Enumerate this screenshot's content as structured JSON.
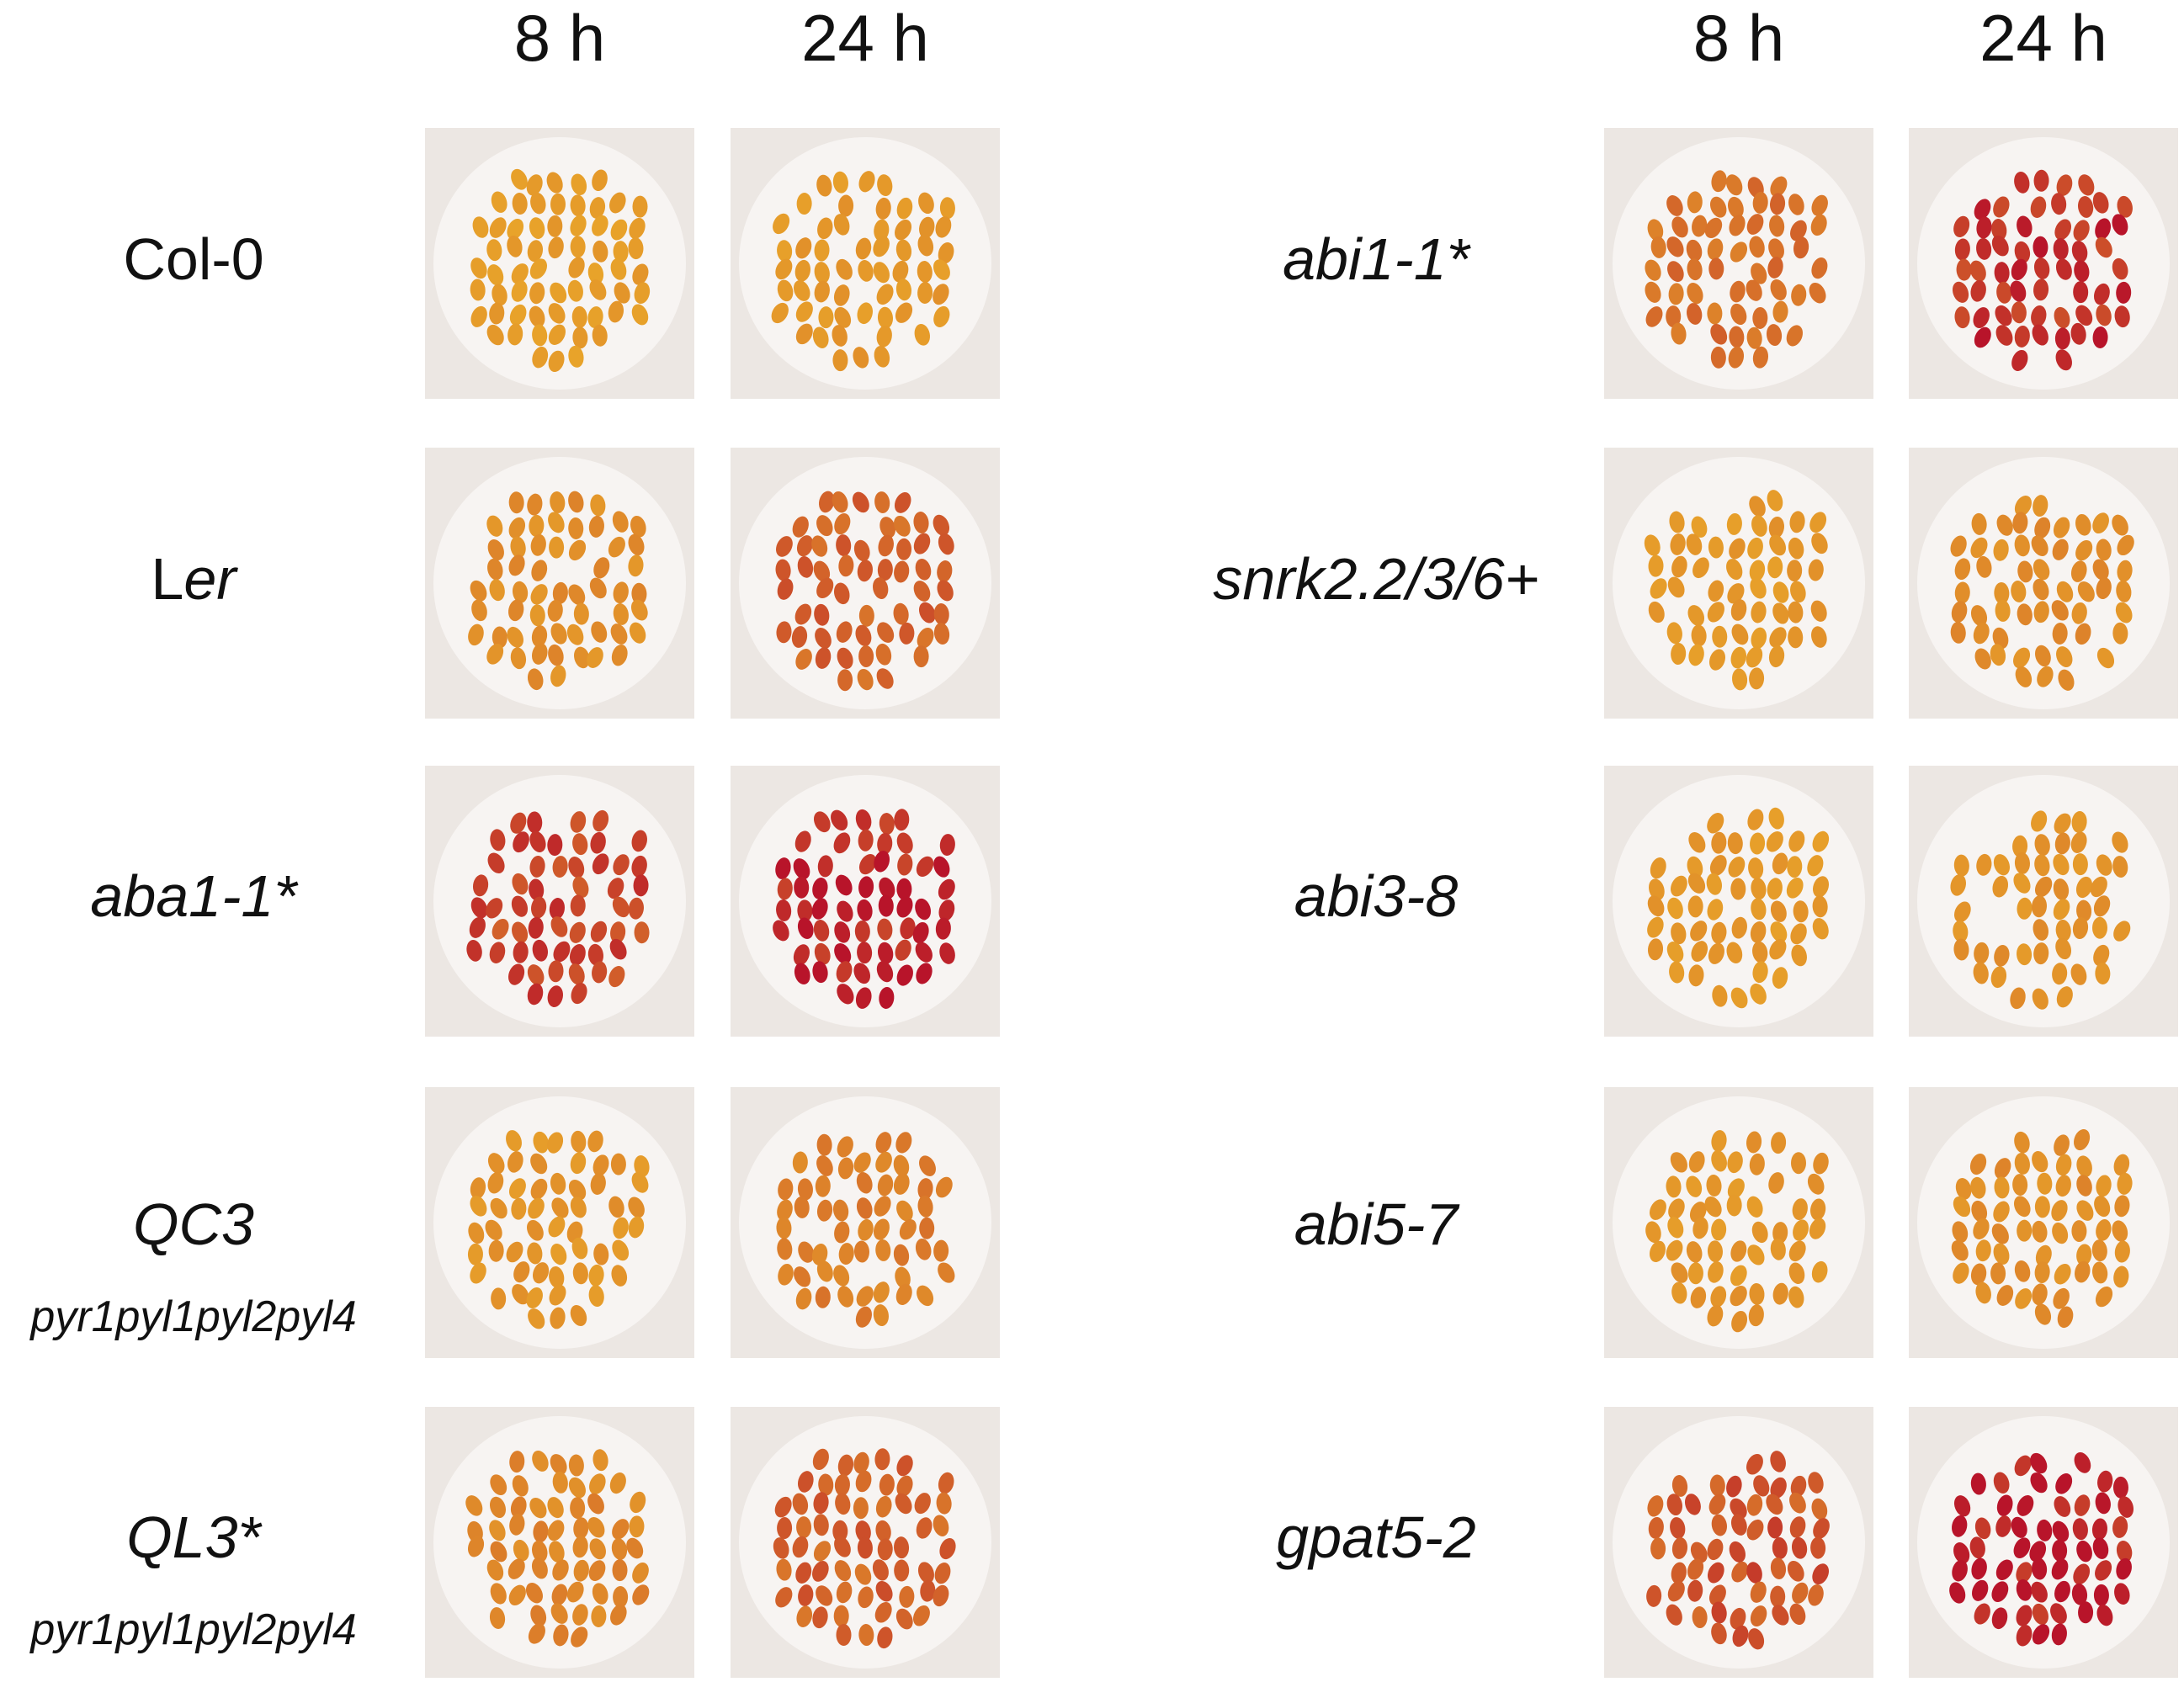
{
  "headers": {
    "left_8h": "8 h",
    "left_24h": "24 h",
    "right_8h": "8 h",
    "right_24h": "24 h"
  },
  "rows": {
    "left": [
      {
        "name": "Col-0",
        "name_plain": "",
        "subtitle": "",
        "stain_8h": 0.05,
        "stain_24h": 0.08
      },
      {
        "name": "er",
        "name_plain": "L",
        "subtitle": "",
        "stain_8h": 0.15,
        "stain_24h": 0.45
      },
      {
        "name": "aba1-1*",
        "name_plain": "",
        "subtitle": "",
        "stain_8h": 0.65,
        "stain_24h": 0.9
      },
      {
        "name": "QC3",
        "name_plain": "",
        "subtitle": "pyr1pyl1pyl2pyl4",
        "stain_8h": 0.1,
        "stain_24h": 0.25
      },
      {
        "name": "QL3*",
        "name_plain": "",
        "subtitle": "pyr1pyl1pyl2pyl4",
        "stain_8h": 0.2,
        "stain_24h": 0.45
      }
    ],
    "right": [
      {
        "name": "abi1-1*",
        "name_plain": "",
        "subtitle": "",
        "stain_8h": 0.35,
        "stain_24h": 0.8
      },
      {
        "name": "snrk2.2/3/6+",
        "name_plain": "",
        "subtitle": "",
        "stain_8h": 0.08,
        "stain_24h": 0.15
      },
      {
        "name": "abi3-8",
        "name_plain": "",
        "subtitle": "",
        "stain_8h": 0.08,
        "stain_24h": 0.12
      },
      {
        "name": "abi5-7",
        "name_plain": "",
        "subtitle": "",
        "stain_8h": 0.1,
        "stain_24h": 0.15
      },
      {
        "name": "gpat5-2",
        "name_plain": "",
        "subtitle": "",
        "stain_8h": 0.55,
        "stain_24h": 0.95
      }
    ]
  },
  "colors": {
    "background": "#ffffff",
    "tile_background": "#ece7e3",
    "dish": "#f7f4f2",
    "seed_unstained": "#e8a32a",
    "seed_stained": "#b8142a"
  }
}
